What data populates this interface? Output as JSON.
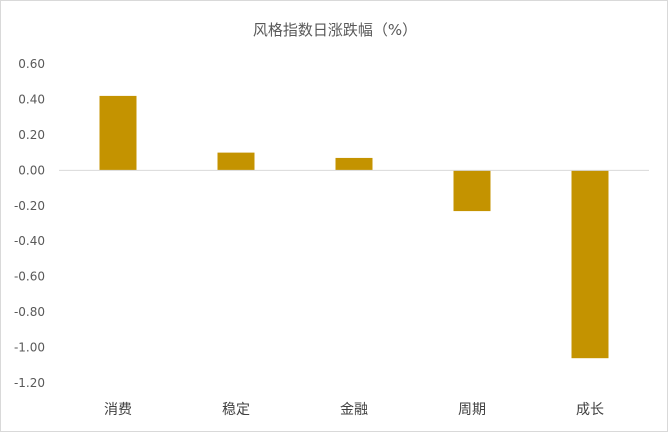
{
  "chart_data": {
    "type": "bar",
    "title": "风格指数日涨跌幅（%）",
    "categories": [
      "消费",
      "稳定",
      "金融",
      "周期",
      "成长"
    ],
    "values": [
      0.42,
      0.1,
      0.07,
      -0.23,
      -1.06
    ],
    "ylim": [
      -1.2,
      0.6
    ],
    "yticks": [
      "0.60",
      "0.40",
      "0.20",
      "0.00",
      "-0.20",
      "-0.40",
      "-0.60",
      "-0.80",
      "-1.00",
      "-1.20"
    ],
    "xlabel": "",
    "ylabel": "",
    "grid": false,
    "legend": "none",
    "bar_color": "#c49300",
    "axis_color": "#d9d9d9"
  }
}
